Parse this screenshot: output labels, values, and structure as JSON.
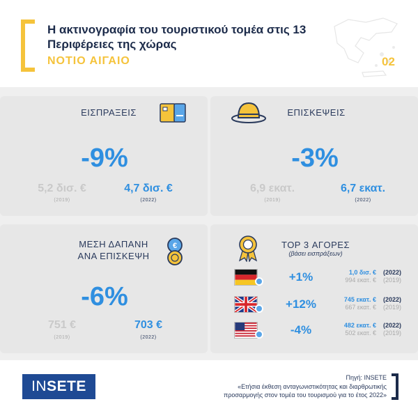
{
  "header": {
    "title": "Η ακτινογραφία του τουριστικού τομέα στις 13 Περιφέρειες της χώρας",
    "region": "ΝΟΤΙΟ ΑΙΓΑΙΟ",
    "page_number": "02"
  },
  "colors": {
    "accent": "#f5c33b",
    "blue": "#2f8fe0",
    "navy": "#1c2b4a",
    "logo_bg": "#1f4a94"
  },
  "receipts": {
    "label": "ΕΙΣΠΡΑΞΕΙΣ",
    "icon": "credit-card-icon",
    "change": "-9%",
    "old_value": "5,2 δισ. €",
    "old_year": "(2019)",
    "new_value": "4,7 δισ. €",
    "new_year": "(2022)"
  },
  "visits": {
    "label": "ΕΠΙΣΚΕΨΕΙΣ",
    "icon": "sun-hat-icon",
    "change": "-3%",
    "old_value": "6,9 εκατ.",
    "old_year": "(2019)",
    "new_value": "6,7 εκατ.",
    "new_year": "(2022)"
  },
  "spend": {
    "label_line1": "ΜΕΣΗ ΔΑΠΑΝΗ",
    "label_line2": "ΑΝΑ ΕΠΙΣΚΕΨΗ",
    "icon": "coins-icon",
    "change": "-6%",
    "old_value": "751 €",
    "old_year": "(2019)",
    "new_value": "703 €",
    "new_year": "(2022)"
  },
  "markets": {
    "title": "TOP 3 ΑΓΟΡΕΣ",
    "subtitle": "(βάσει εισπράξεων)",
    "icon": "award-ribbon-icon",
    "rows": [
      {
        "flag": "germany-flag-icon",
        "change": "+1%",
        "value_2022": "1,0 δισ. €",
        "year_2022": "(2022)",
        "value_2019": "994 εκατ. €",
        "year_2019": "(2019)"
      },
      {
        "flag": "uk-flag-icon",
        "change": "+12%",
        "value_2022": "745 εκατ. €",
        "year_2022": "(2022)",
        "value_2019": "667 εκατ. €",
        "year_2019": "(2019)"
      },
      {
        "flag": "usa-flag-icon",
        "change": "-4%",
        "value_2022": "482 εκατ. €",
        "year_2022": "(2022)",
        "value_2019": "502 εκατ. €",
        "year_2019": "(2019)"
      }
    ]
  },
  "footer": {
    "logo_part1": "IN",
    "logo_part2": "SETE",
    "source_label": "Πηγή: INSETE",
    "source_text": "«Ετήσια έκθεση ανταγωνιστικότητας και διαρθρωτικής προσαρμογής στον τομέα του τουρισμού για το έτος 2022»"
  }
}
